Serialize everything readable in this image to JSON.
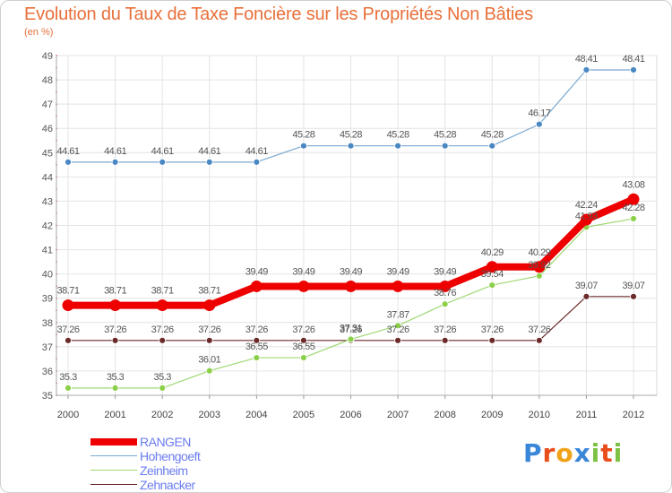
{
  "title": "Evolution du Taux de Taxe Foncière sur les Propriétés Non Bâties",
  "unit_label": "(en %)",
  "chart_data": {
    "type": "line",
    "title": "Evolution du Taux de Taxe Foncière sur les Propriétés Non Bâties",
    "ylabel": "(en %)",
    "xlabel": "",
    "ylim": [
      35,
      49
    ],
    "yticks": [
      "35",
      "36",
      "37",
      "38",
      "39",
      "40",
      "41",
      "42",
      "43",
      "44",
      "45",
      "46",
      "47",
      "48",
      "49"
    ],
    "categories": [
      "2000",
      "2001",
      "2002",
      "2003",
      "2004",
      "2005",
      "2006",
      "2007",
      "2008",
      "2009",
      "2010",
      "2011",
      "2012"
    ],
    "series": [
      {
        "name": "Zehnacker",
        "color": "#6b2a2a",
        "width": 1.2,
        "marker": 3.5,
        "fill": "#6b2a2a",
        "values": [
          37.26,
          37.26,
          37.26,
          37.26,
          37.26,
          37.26,
          37.26,
          37.26,
          37.26,
          37.26,
          37.26,
          39.07,
          39.07
        ],
        "labels": [
          "37.26",
          "37.26",
          "37.26",
          "37.26",
          "37.26",
          "37.26",
          "37.26",
          "37.26",
          "37.26",
          "37.26",
          "37.26",
          "39.07",
          "39.07"
        ]
      },
      {
        "name": "Zeinheim",
        "color": "#9fd873",
        "width": 1.2,
        "marker": 3.5,
        "fill": "#8cd04a",
        "values": [
          35.3,
          35.3,
          35.3,
          36.01,
          36.55,
          36.55,
          37.31,
          37.87,
          38.76,
          39.54,
          39.92,
          41.93,
          42.28
        ],
        "labels": [
          "35.3",
          "35.3",
          "35.3",
          "36.01",
          "36.55",
          "36.55",
          "37.31",
          "37.87",
          "38.76",
          "39.54",
          "39.92",
          "41.93",
          "42.28"
        ]
      },
      {
        "name": "Hohengoeft",
        "color": "#79a8d0",
        "width": 1.2,
        "marker": 3.5,
        "fill": "#4a88c4",
        "values": [
          44.61,
          44.61,
          44.61,
          44.61,
          44.61,
          45.28,
          45.28,
          45.28,
          45.28,
          45.28,
          46.17,
          48.41,
          48.41
        ],
        "labels": [
          "44.61",
          "44.61",
          "44.61",
          "44.61",
          "44.61",
          "45.28",
          "45.28",
          "45.28",
          "45.28",
          "45.28",
          "46.17",
          "48.41",
          "48.41"
        ]
      },
      {
        "name": "RANGEN",
        "color": "#ee0000",
        "width": 8,
        "marker": 6.5,
        "fill": "#ee0000",
        "values": [
          38.71,
          38.71,
          38.71,
          38.71,
          39.49,
          39.49,
          39.49,
          39.49,
          39.49,
          40.29,
          40.29,
          42.24,
          43.08
        ],
        "labels": [
          "38.71",
          "38.71",
          "38.71",
          "38.71",
          "39.49",
          "39.49",
          "39.49",
          "39.49",
          "39.49",
          "40.29",
          "40.29",
          "42.24",
          "43.08"
        ]
      }
    ],
    "legend": [
      "RANGEN",
      "Hohengoeft",
      "Zeinheim",
      "Zehnacker"
    ],
    "legend_position": "bottom-left"
  },
  "legend_items": [
    {
      "label": "RANGEN",
      "color": "#ee0000"
    },
    {
      "label": "Hohengoeft",
      "color": "#79a8d0"
    },
    {
      "label": "Zeinheim",
      "color": "#9fd873"
    },
    {
      "label": "Zehnacker",
      "color": "#6b2a2a"
    }
  ],
  "logo": {
    "letters": [
      "P",
      "r",
      "o",
      "x",
      "i",
      "t",
      "i"
    ],
    "colors": [
      "#3a86d8",
      "#e94d1c",
      "#f0a31a",
      "#3a86d8",
      "#7cc142",
      "#e94d1c",
      "#7cc142"
    ]
  }
}
